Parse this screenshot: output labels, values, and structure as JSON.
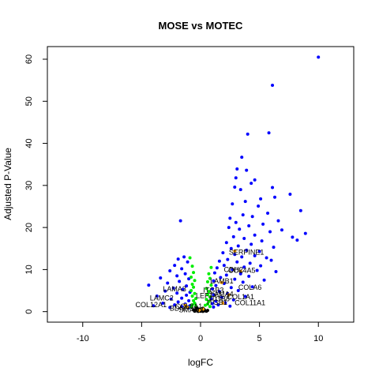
{
  "chart_data": {
    "type": "scatter",
    "title": "MOSE vs MOTEC",
    "xlabel": "logFC",
    "ylabel": "Adjusted P-Value",
    "xlim": [
      -13,
      13
    ],
    "ylim": [
      -2.5,
      63
    ],
    "xticks": [
      -10,
      -5,
      0,
      5,
      10
    ],
    "yticks": [
      0,
      10,
      20,
      30,
      40,
      50,
      60
    ],
    "grid": false,
    "legend": "none",
    "colors": {
      "significant": "#0000ff",
      "fc_threshold": "#00ee00",
      "not_significant": "#000000",
      "highlight": "#ffa500"
    },
    "series": [
      {
        "group": "significant",
        "points": [
          [
            10.0,
            60.5
          ],
          [
            6.1,
            53.8
          ],
          [
            5.8,
            42.5
          ],
          [
            4.0,
            42.2
          ],
          [
            3.5,
            36.7
          ],
          [
            3.1,
            33.9
          ],
          [
            3.9,
            33.6
          ],
          [
            3.0,
            31.8
          ],
          [
            4.6,
            31.3
          ],
          [
            4.3,
            30.5
          ],
          [
            2.9,
            29.6
          ],
          [
            6.1,
            29.5
          ],
          [
            3.4,
            29.0
          ],
          [
            7.6,
            27.9
          ],
          [
            6.3,
            27.2
          ],
          [
            5.1,
            26.8
          ],
          [
            3.8,
            26.2
          ],
          [
            2.7,
            25.6
          ],
          [
            4.9,
            25.1
          ],
          [
            8.5,
            24.0
          ],
          [
            5.7,
            23.4
          ],
          [
            3.6,
            23.0
          ],
          [
            4.4,
            22.6
          ],
          [
            2.5,
            22.2
          ],
          [
            6.6,
            21.6
          ],
          [
            -1.7,
            21.6
          ],
          [
            3.0,
            21.2
          ],
          [
            5.3,
            20.8
          ],
          [
            4.1,
            20.4
          ],
          [
            2.4,
            20.0
          ],
          [
            3.3,
            19.6
          ],
          [
            6.9,
            19.4
          ],
          [
            5.9,
            19.0
          ],
          [
            8.9,
            18.6
          ],
          [
            4.6,
            18.2
          ],
          [
            2.8,
            17.8
          ],
          [
            7.8,
            17.7
          ],
          [
            3.7,
            17.4
          ],
          [
            8.2,
            17.0
          ],
          [
            5.2,
            16.8
          ],
          [
            2.2,
            16.4
          ],
          [
            4.3,
            16.0
          ],
          [
            3.2,
            15.6
          ],
          [
            6.2,
            15.3
          ],
          [
            2.6,
            15.0
          ],
          [
            3.9,
            14.6
          ],
          [
            5.0,
            14.3
          ],
          [
            1.9,
            14.0
          ],
          [
            2.9,
            13.6
          ],
          [
            4.6,
            13.3
          ],
          [
            3.5,
            13.0
          ],
          [
            5.6,
            12.8
          ],
          [
            -1.4,
            13.0
          ],
          [
            -1.9,
            12.5
          ],
          [
            2.3,
            12.4
          ],
          [
            6.0,
            12.2
          ],
          [
            1.6,
            12.0
          ],
          [
            3.1,
            11.8
          ],
          [
            4.2,
            11.5
          ],
          [
            -1.1,
            11.8
          ],
          [
            -2.2,
            11.0
          ],
          [
            2.0,
            11.0
          ],
          [
            5.1,
            10.9
          ],
          [
            3.7,
            10.6
          ],
          [
            1.4,
            10.4
          ],
          [
            -1.6,
            10.2
          ],
          [
            2.7,
            10.0
          ],
          [
            4.8,
            9.8
          ],
          [
            -2.6,
            9.7
          ],
          [
            6.4,
            9.5
          ],
          [
            1.2,
            9.2
          ],
          [
            3.4,
            9.0
          ],
          [
            -1.3,
            9.0
          ],
          [
            2.2,
            8.7
          ],
          [
            -2.0,
            8.5
          ],
          [
            4.1,
            8.4
          ],
          [
            1.7,
            8.1
          ],
          [
            -3.4,
            8.0
          ],
          [
            -1.0,
            7.8
          ],
          [
            2.9,
            7.7
          ],
          [
            5.4,
            7.5
          ],
          [
            1.1,
            7.3
          ],
          [
            -1.8,
            7.2
          ],
          [
            3.6,
            7.0
          ],
          [
            -2.8,
            6.8
          ],
          [
            2.0,
            6.7
          ],
          [
            -4.4,
            6.3
          ],
          [
            1.3,
            6.2
          ],
          [
            -1.2,
            6.1
          ],
          [
            4.4,
            5.9
          ],
          [
            2.6,
            5.7
          ],
          [
            -2.3,
            5.6
          ],
          [
            1.0,
            5.4
          ],
          [
            -1.5,
            5.3
          ],
          [
            3.2,
            5.0
          ],
          [
            -3.0,
            4.9
          ],
          [
            1.6,
            4.8
          ],
          [
            -0.9,
            4.6
          ],
          [
            -2.0,
            4.4
          ],
          [
            2.3,
            4.3
          ],
          [
            1.1,
            4.0
          ],
          [
            -1.2,
            3.9
          ],
          [
            -3.7,
            3.7
          ],
          [
            3.8,
            3.6
          ],
          [
            1.8,
            3.4
          ],
          [
            -1.6,
            3.2
          ],
          [
            0.9,
            3.1
          ],
          [
            -2.5,
            3.0
          ],
          [
            2.8,
            2.8
          ],
          [
            -1.0,
            2.6
          ],
          [
            1.3,
            2.5
          ],
          [
            -1.9,
            2.3
          ],
          [
            2.1,
            2.1
          ],
          [
            -3.2,
            2.0
          ],
          [
            1.0,
            1.9
          ],
          [
            -1.3,
            1.8
          ],
          [
            -2.2,
            1.6
          ],
          [
            1.5,
            1.6
          ],
          [
            -4.0,
            1.4
          ],
          [
            -0.9,
            1.4
          ],
          [
            2.5,
            1.3
          ],
          [
            -1.6,
            1.2
          ],
          [
            1.1,
            1.1
          ],
          [
            -2.6,
            1.0
          ],
          [
            -1.0,
            0.9
          ]
        ]
      },
      {
        "group": "fc_threshold",
        "points": [
          [
            -0.9,
            12.8
          ],
          [
            -0.7,
            10.8
          ],
          [
            0.9,
            10.5
          ],
          [
            -0.6,
            9.3
          ],
          [
            0.7,
            9.0
          ],
          [
            -0.8,
            8.2
          ],
          [
            0.8,
            7.9
          ],
          [
            -0.5,
            7.4
          ],
          [
            0.6,
            7.1
          ],
          [
            -0.7,
            6.5
          ],
          [
            0.9,
            6.3
          ],
          [
            -0.6,
            5.8
          ],
          [
            0.5,
            5.5
          ],
          [
            -0.8,
            5.0
          ],
          [
            0.7,
            4.8
          ],
          [
            -0.5,
            4.3
          ],
          [
            0.6,
            4.1
          ],
          [
            -0.7,
            3.7
          ],
          [
            0.8,
            3.5
          ],
          [
            -0.4,
            3.1
          ],
          [
            0.5,
            2.9
          ],
          [
            -0.6,
            2.6
          ],
          [
            0.7,
            2.4
          ],
          [
            -0.5,
            2.0
          ],
          [
            0.6,
            1.8
          ],
          [
            -0.7,
            1.6
          ],
          [
            0.4,
            1.5
          ],
          [
            -0.4,
            1.3
          ],
          [
            0.8,
            1.2
          ],
          [
            -0.8,
            1.1
          ]
        ]
      },
      {
        "group": "not_significant",
        "points": [
          [
            -0.3,
            0.9
          ],
          [
            0.2,
            0.8
          ],
          [
            -0.1,
            0.6
          ],
          [
            0.3,
            0.5
          ],
          [
            -0.4,
            0.4
          ],
          [
            0.1,
            0.3
          ],
          [
            -0.2,
            0.2
          ],
          [
            0.4,
            0.2
          ],
          [
            0.0,
            0.1
          ],
          [
            -0.5,
            0.1
          ],
          [
            0.5,
            0.1
          ],
          [
            0.2,
            0.05
          ],
          [
            -0.2,
            0.05
          ],
          [
            0.6,
            0.3
          ],
          [
            -0.6,
            0.4
          ]
        ]
      },
      {
        "group": "highlight",
        "points": [
          [
            2.9,
            14.4
          ],
          [
            3.4,
            9.6
          ],
          [
            1.8,
            6.9
          ],
          [
            2.4,
            4.0
          ],
          [
            1.9,
            2.0
          ],
          [
            -1.3,
            1.5
          ],
          [
            -1.1,
            1.0
          ],
          [
            0.2,
            0.6
          ],
          [
            -0.1,
            0.3
          ]
        ]
      }
    ],
    "annotations": [
      {
        "text": "SERPINE1",
        "x": 3.9,
        "y": 14.1
      },
      {
        "text": "CDH2",
        "x": 2.8,
        "y": 10.0
      },
      {
        "text": "COL4A5",
        "x": 3.5,
        "y": 9.8
      },
      {
        "text": "LAMB1",
        "x": 1.8,
        "y": 7.3
      },
      {
        "text": "COLA6",
        "x": 4.2,
        "y": 5.8
      },
      {
        "text": "LAMA4",
        "x": 1.8,
        "y": 4.2
      },
      {
        "text": "ITGB3",
        "x": 1.1,
        "y": 5.1
      },
      {
        "text": "LEFTY2",
        "x": 0.7,
        "y": 3.8
      },
      {
        "text": "COL1A1",
        "x": 3.4,
        "y": 3.5
      },
      {
        "text": "ITGB8",
        "x": 1.6,
        "y": 3.0
      },
      {
        "text": "ITGB1",
        "x": 1.4,
        "y": 2.2
      },
      {
        "text": "COL11A1",
        "x": 4.2,
        "y": 2.1
      },
      {
        "text": "LAMA3",
        "x": -2.2,
        "y": 5.4
      },
      {
        "text": "LAMC2",
        "x": -3.3,
        "y": 3.2
      },
      {
        "text": "COL12A1",
        "x": -4.2,
        "y": 1.6
      },
      {
        "text": "COL8A1",
        "x": -1.0,
        "y": 1.3
      },
      {
        "text": "BDNF",
        "x": -1.8,
        "y": 0.8
      },
      {
        "text": "SMAD3",
        "x": -0.8,
        "y": 0.4
      }
    ]
  }
}
